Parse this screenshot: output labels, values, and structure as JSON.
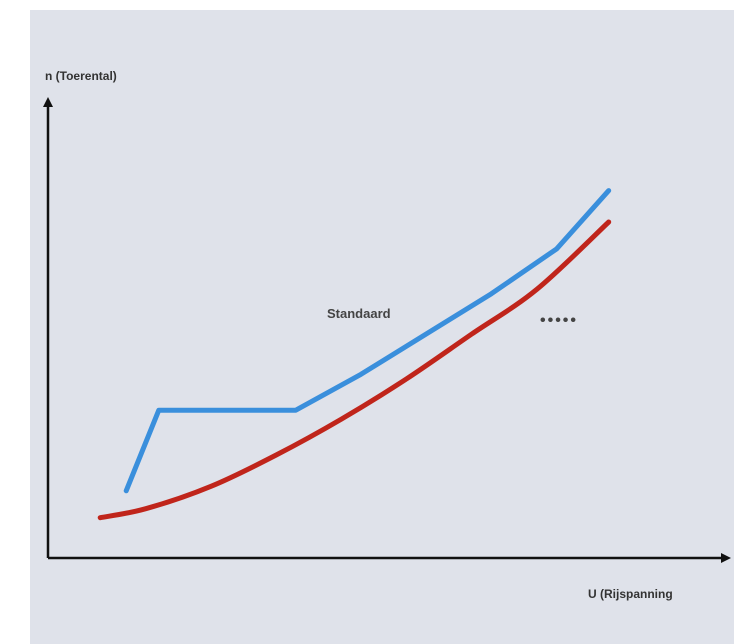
{
  "chart_data": {
    "type": "line",
    "title": "",
    "xlabel": "U (Rijspanning",
    "ylabel": "n (Toerental)",
    "xlim": [
      0,
      10
    ],
    "ylim": [
      0,
      10
    ],
    "grid": false,
    "annotations": [
      "Standaard",
      "•••••"
    ],
    "series": [
      {
        "name": "",
        "color": "#3a8fdc",
        "x": [
          1.2,
          1.7,
          3.8,
          4.8,
          5.8,
          6.8,
          7.8,
          8.6
        ],
        "y": [
          1.5,
          3.3,
          3.3,
          4.1,
          5.0,
          5.9,
          6.9,
          8.2
        ]
      },
      {
        "name": "",
        "color": "#c0251b",
        "x": [
          0.8,
          1.5,
          2.5,
          3.5,
          4.5,
          5.5,
          6.5,
          7.5,
          8.6
        ],
        "y": [
          0.9,
          1.1,
          1.6,
          2.3,
          3.1,
          4.0,
          5.0,
          6.0,
          7.5
        ]
      }
    ]
  }
}
